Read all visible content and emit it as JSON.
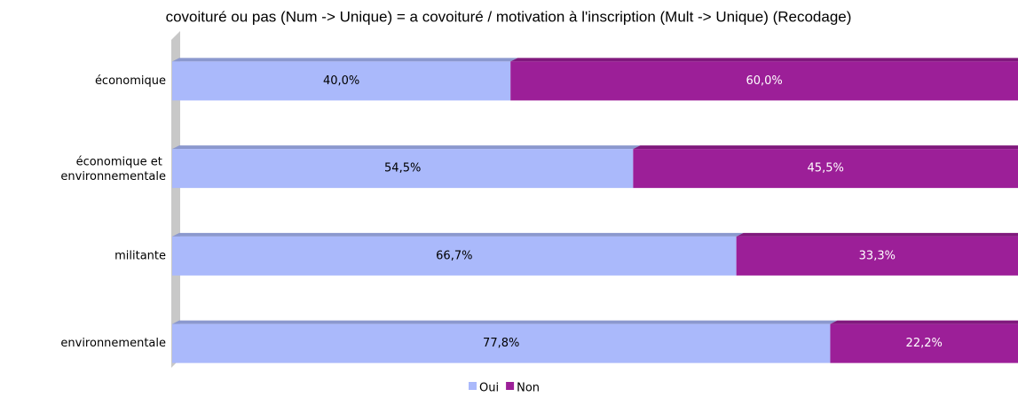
{
  "chart_data": {
    "type": "stacked-barh",
    "title": "covoituré ou pas (Num -> Unique) = a covoituré / motivation à l'inscription (Mult -> Unique) (Recodage)",
    "categories": [
      "économique",
      "économique et environnementale",
      "militante",
      "environnementale"
    ],
    "series": [
      {
        "name": "Oui",
        "color": "#aab9fb",
        "values": [
          40.0,
          54.5,
          66.7,
          77.8
        ],
        "value_labels": [
          "40,0%",
          "54,5%",
          "66,7%",
          "77,8%"
        ]
      },
      {
        "name": "Non",
        "color": "#9c1f98",
        "values": [
          60.0,
          45.5,
          33.3,
          22.2
        ],
        "value_labels": [
          "60,0%",
          "45,5%",
          "33,3%",
          "22,2%"
        ]
      }
    ],
    "xlim": [
      0,
      100
    ],
    "legend": "bottom"
  }
}
